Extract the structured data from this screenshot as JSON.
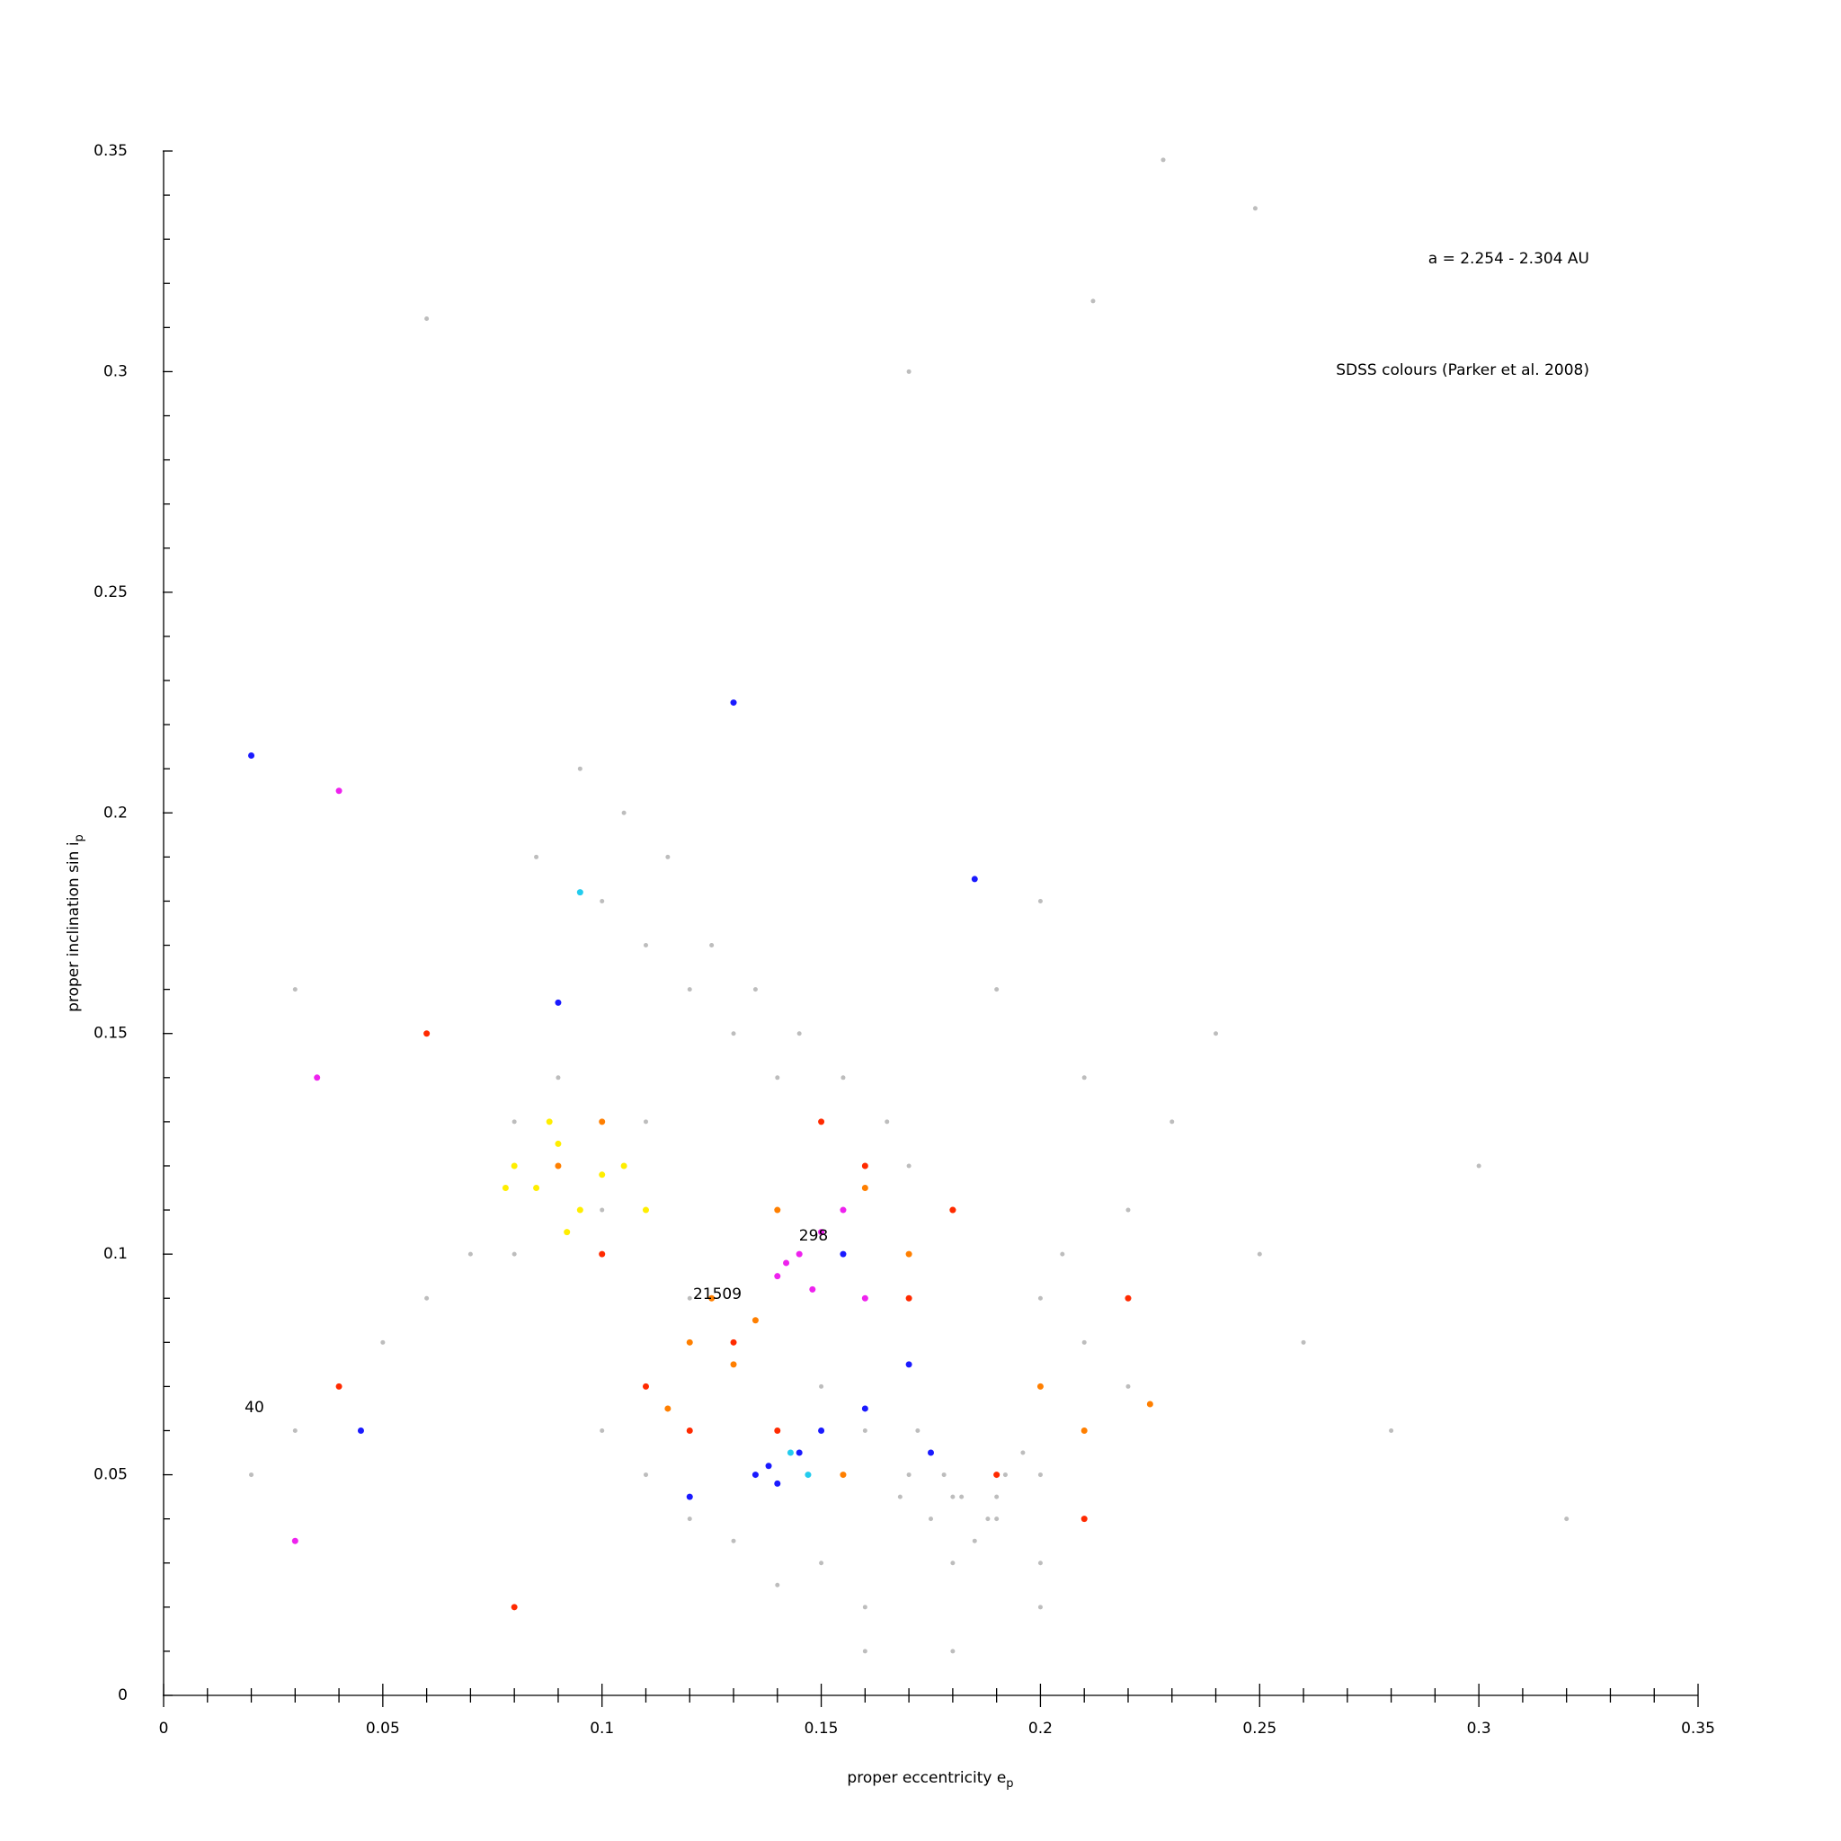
{
  "chart_data": {
    "type": "scatter",
    "x_label": "proper eccentricity e",
    "x_label_sub": "p",
    "y_label": "proper inclination sin i",
    "y_label_sub": "p",
    "annotations": [
      "a = 2.254 - 2.304 AU",
      "SDSS colours (Parker et al. 2008)",
      "40",
      "298",
      "21509"
    ],
    "xlim": [
      0,
      0.35
    ],
    "ylim": [
      0,
      0.35
    ],
    "xticks": [
      0,
      0.05,
      0.1,
      0.15,
      0.2,
      0.25,
      0.3,
      0.35
    ],
    "yticks": [
      0,
      0.05,
      0.1,
      0.15,
      0.2,
      0.25,
      0.3,
      0.35
    ],
    "xminorticks": [
      0.01,
      0.02,
      0.03,
      0.04,
      0.06,
      0.07,
      0.08,
      0.09,
      0.11,
      0.12,
      0.13,
      0.14,
      0.16,
      0.17,
      0.18,
      0.19,
      0.21,
      0.22,
      0.23,
      0.24,
      0.26,
      0.27,
      0.28,
      0.29,
      0.31,
      0.32,
      0.33,
      0.34
    ],
    "yminorticks": [
      0.01,
      0.02,
      0.03,
      0.04,
      0.06,
      0.07,
      0.08,
      0.09,
      0.11,
      0.12,
      0.13,
      0.14,
      0.16,
      0.17,
      0.18,
      0.19,
      0.21,
      0.22,
      0.23,
      0.24,
      0.26,
      0.27,
      0.28,
      0.29,
      0.31,
      0.32,
      0.33,
      0.34
    ],
    "series": [
      {
        "color": "#bdbdbd",
        "x": [
          0.09,
          0.1,
          0.11,
          0.08,
          0.12,
          0.13,
          0.15,
          0.16,
          0.17,
          0.18,
          0.19,
          0.2,
          0.21,
          0.22,
          0.18,
          0.175,
          0.185,
          0.19,
          0.2,
          0.14,
          0.13,
          0.12,
          0.11,
          0.1,
          0.09,
          0.08,
          0.07,
          0.06,
          0.05,
          0.04,
          0.03,
          0.02,
          0.25,
          0.26,
          0.28,
          0.3,
          0.32,
          0.24,
          0.23,
          0.22,
          0.17,
          0.165,
          0.155,
          0.145,
          0.135,
          0.125,
          0.115,
          0.105,
          0.095,
          0.085,
          0.178,
          0.182,
          0.188,
          0.192,
          0.196,
          0.172,
          0.168,
          0.2,
          0.205,
          0.21,
          0.15,
          0.16,
          0.14,
          0.13,
          0.12,
          0.11,
          0.1,
          0.19,
          0.2,
          0.21,
          0.18,
          0.16,
          0.2,
          0.22,
          0.17,
          0.212,
          0.228,
          0.249,
          0.06,
          0.03
        ],
        "y": [
          0.12,
          0.11,
          0.13,
          0.1,
          0.09,
          0.08,
          0.07,
          0.06,
          0.05,
          0.045,
          0.04,
          0.05,
          0.06,
          0.07,
          0.03,
          0.04,
          0.035,
          0.045,
          0.02,
          0.14,
          0.15,
          0.16,
          0.17,
          0.18,
          0.14,
          0.13,
          0.1,
          0.09,
          0.08,
          0.07,
          0.06,
          0.05,
          0.1,
          0.08,
          0.06,
          0.12,
          0.04,
          0.15,
          0.13,
          0.11,
          0.12,
          0.13,
          0.14,
          0.15,
          0.16,
          0.17,
          0.19,
          0.2,
          0.21,
          0.19,
          0.05,
          0.045,
          0.04,
          0.05,
          0.055,
          0.06,
          0.045,
          0.09,
          0.1,
          0.08,
          0.03,
          0.02,
          0.025,
          0.035,
          0.04,
          0.05,
          0.06,
          0.16,
          0.18,
          0.14,
          0.01,
          0.01,
          0.03,
          0.09,
          0.3,
          0.316,
          0.348,
          0.337,
          0.312,
          0.16
        ]
      },
      {
        "color": "#ffee00",
        "x": [
          0.08,
          0.085,
          0.09,
          0.095,
          0.1,
          0.088,
          0.092,
          0.078,
          0.105,
          0.11
        ],
        "y": [
          0.12,
          0.115,
          0.125,
          0.11,
          0.118,
          0.13,
          0.105,
          0.115,
          0.12,
          0.11
        ]
      },
      {
        "color": "#ff7f00",
        "x": [
          0.12,
          0.13,
          0.125,
          0.14,
          0.16,
          0.17,
          0.2,
          0.21,
          0.09,
          0.1,
          0.115,
          0.135,
          0.155,
          0.18,
          0.225
        ],
        "y": [
          0.08,
          0.075,
          0.09,
          0.11,
          0.115,
          0.1,
          0.07,
          0.06,
          0.12,
          0.13,
          0.065,
          0.085,
          0.05,
          0.11,
          0.066
        ]
      },
      {
        "color": "#ff2a00",
        "x": [
          0.11,
          0.12,
          0.13,
          0.15,
          0.17,
          0.19,
          0.21,
          0.14,
          0.16,
          0.1,
          0.08,
          0.06,
          0.04,
          0.22,
          0.18
        ],
        "y": [
          0.07,
          0.06,
          0.08,
          0.13,
          0.09,
          0.05,
          0.04,
          0.06,
          0.12,
          0.1,
          0.02,
          0.15,
          0.07,
          0.09,
          0.11
        ]
      },
      {
        "color": "#ee22ee",
        "x": [
          0.14,
          0.145,
          0.148,
          0.15,
          0.142,
          0.155,
          0.16,
          0.04,
          0.035,
          0.03
        ],
        "y": [
          0.095,
          0.1,
          0.092,
          0.105,
          0.098,
          0.11,
          0.09,
          0.205,
          0.14,
          0.035
        ]
      },
      {
        "color": "#1a1aff",
        "x": [
          0.135,
          0.14,
          0.145,
          0.138,
          0.15,
          0.16,
          0.17,
          0.155,
          0.185,
          0.09,
          0.12,
          0.13,
          0.02,
          0.045,
          0.175
        ],
        "y": [
          0.05,
          0.048,
          0.055,
          0.052,
          0.06,
          0.065,
          0.075,
          0.1,
          0.185,
          0.157,
          0.045,
          0.225,
          0.213,
          0.06,
          0.055
        ]
      },
      {
        "color": "#22ccee",
        "x": [
          0.143,
          0.147,
          0.095
        ],
        "y": [
          0.055,
          0.05,
          0.182
        ]
      }
    ]
  }
}
